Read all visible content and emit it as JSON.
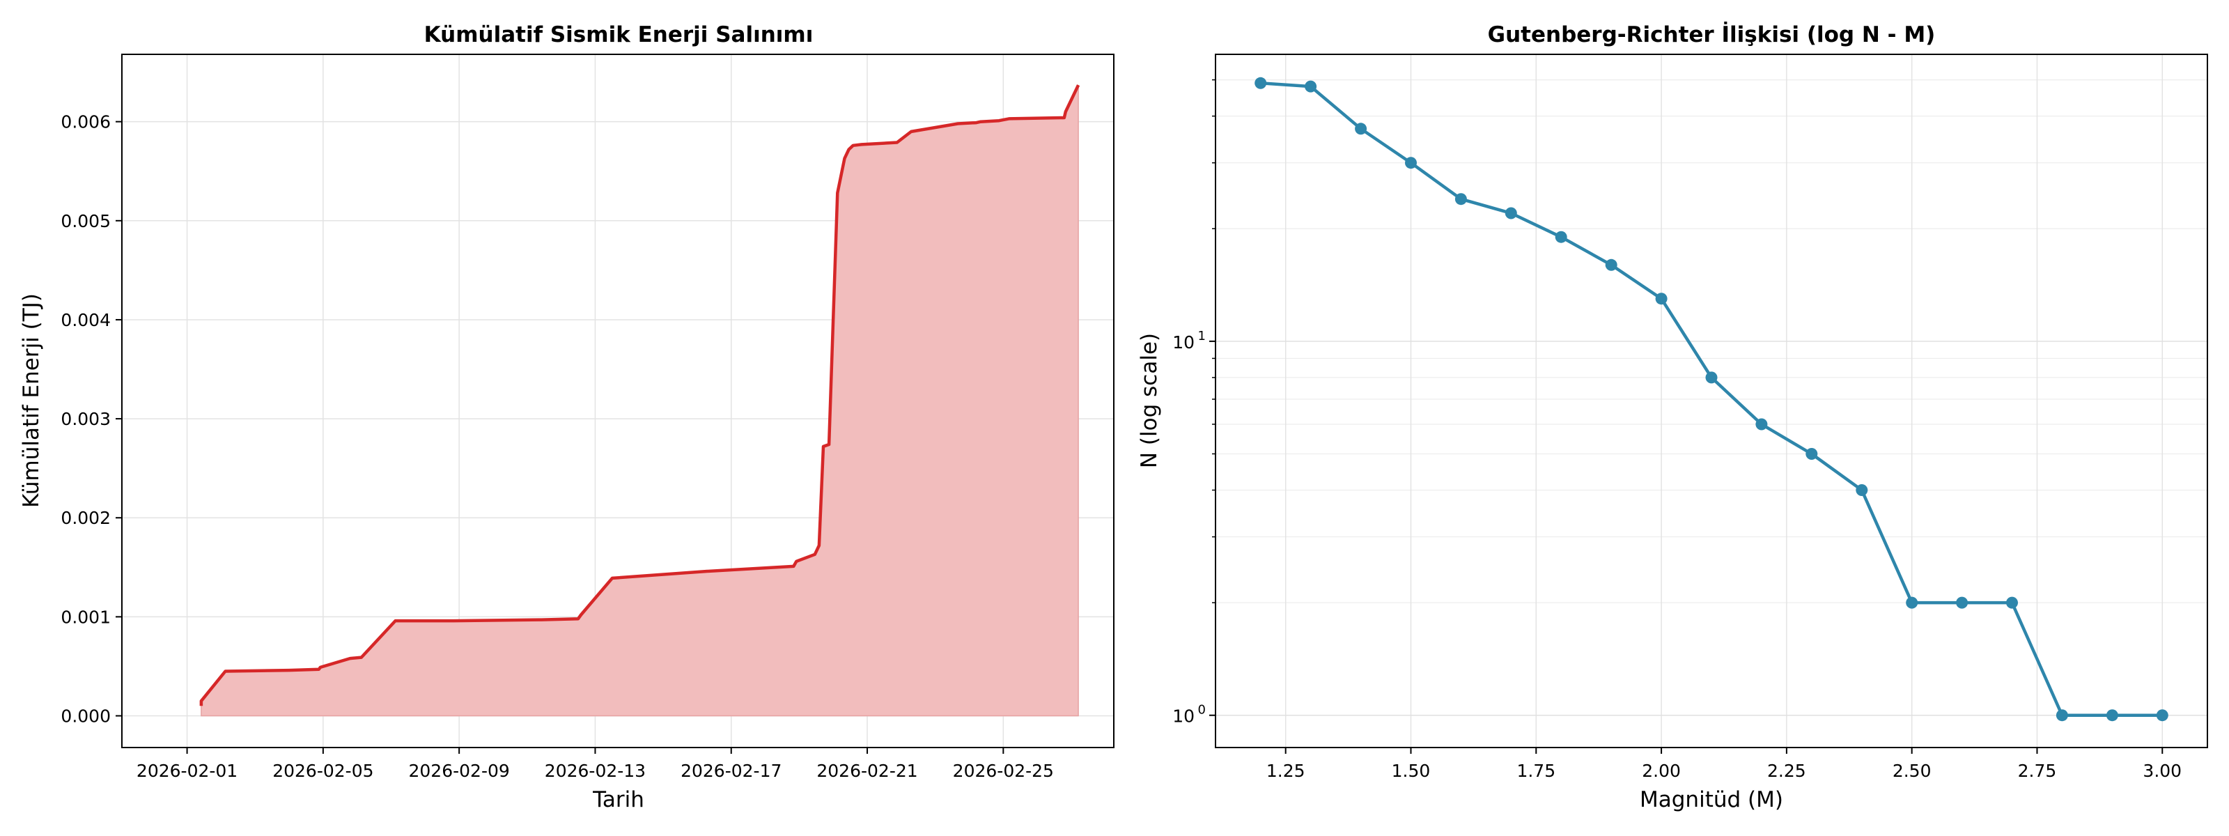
{
  "chart_data": [
    {
      "type": "area",
      "title": "Kümülatif Sismik Enerji Salınımı",
      "xlabel": "Tarih",
      "ylabel": "Kümülatif Enerji (TJ)",
      "xlim": [
        "2026-01-30T02:00",
        "2026-02-28T06:00"
      ],
      "ylim": [
        -0.00032,
        0.00668
      ],
      "xticks": [
        "2026-02-01",
        "2026-02-05",
        "2026-02-09",
        "2026-02-13",
        "2026-02-17",
        "2026-02-21",
        "2026-02-25"
      ],
      "yticks": [
        "0.000",
        "0.001",
        "0.002",
        "0.003",
        "0.004",
        "0.005",
        "0.006"
      ],
      "grid": true,
      "line_color": "#d62728",
      "fill_color": "#f2bdbd",
      "series": [
        {
          "x": [
            "2026-02-01T10:00",
            "2026-02-01T10:00",
            "2026-02-02T03:00",
            "2026-02-04T00:00",
            "2026-02-04T21:00",
            "2026-02-04T22:00",
            "2026-02-05T19:00",
            "2026-02-06T03:00",
            "2026-02-07T03:00",
            "2026-02-08T20:00",
            "2026-02-11T08:00",
            "2026-02-11T10:00",
            "2026-02-12T12:00",
            "2026-02-12T14:00",
            "2026-02-13T12:00",
            "2026-02-16T07:00",
            "2026-02-18T20:00",
            "2026-02-18T22:00",
            "2026-02-19T11:00",
            "2026-02-19T14:00",
            "2026-02-19T17:00",
            "2026-02-19T21:00",
            "2026-02-20T03:00",
            "2026-02-20T08:00",
            "2026-02-20T11:00",
            "2026-02-20T14:00",
            "2026-02-20T20:00",
            "2026-02-21T21:00",
            "2026-02-22T07:00",
            "2026-02-23T16:00",
            "2026-02-24T05:00",
            "2026-02-24T08:00",
            "2026-02-24T21:00",
            "2026-02-25T04:00",
            "2026-02-26T19:00",
            "2026-02-26T20:00",
            "2026-02-27T05:00"
          ],
          "y": [
            0.0001,
            0.00015,
            0.00045,
            0.00046,
            0.00047,
            0.00049,
            0.00058,
            0.00059,
            0.00096,
            0.00096,
            0.00097,
            0.00097,
            0.00098,
            0.00102,
            0.00139,
            0.00146,
            0.00151,
            0.00156,
            0.00163,
            0.00172,
            0.00272,
            0.00274,
            0.00528,
            0.00563,
            0.00572,
            0.00576,
            0.00577,
            0.00579,
            0.0059,
            0.00598,
            0.00599,
            0.006,
            0.00601,
            0.00603,
            0.00604,
            0.0061,
            0.00637
          ]
        }
      ]
    },
    {
      "type": "line",
      "title": "Gutenberg-Richter İlişkisi (log N - M)",
      "xlabel": "Magnitüd (M)",
      "ylabel": "N (log scale)",
      "xscale": "linear",
      "yscale": "log",
      "xlim": [
        1.11,
        3.09
      ],
      "ylim": [
        0.82,
        58.5
      ],
      "xticks": [
        "1.25",
        "1.50",
        "1.75",
        "2.00",
        "2.25",
        "2.50",
        "2.75",
        "3.00"
      ],
      "yticks": [
        {
          "label": "10",
          "sup": "0",
          "value": 1
        },
        {
          "label": "10",
          "sup": "1",
          "value": 10
        }
      ],
      "grid": true,
      "line_color": "#2e86ab",
      "series": [
        {
          "x": [
            1.2,
            1.3,
            1.4,
            1.5,
            1.6,
            1.7,
            1.8,
            1.9,
            2.0,
            2.1,
            2.2,
            2.3,
            2.4,
            2.5,
            2.6,
            2.7,
            2.8,
            2.9,
            3.0
          ],
          "y": [
            49,
            48,
            37,
            30,
            24,
            22,
            19,
            16,
            13,
            8,
            6,
            5,
            4,
            2,
            2,
            2,
            1,
            1,
            1
          ]
        }
      ]
    }
  ]
}
